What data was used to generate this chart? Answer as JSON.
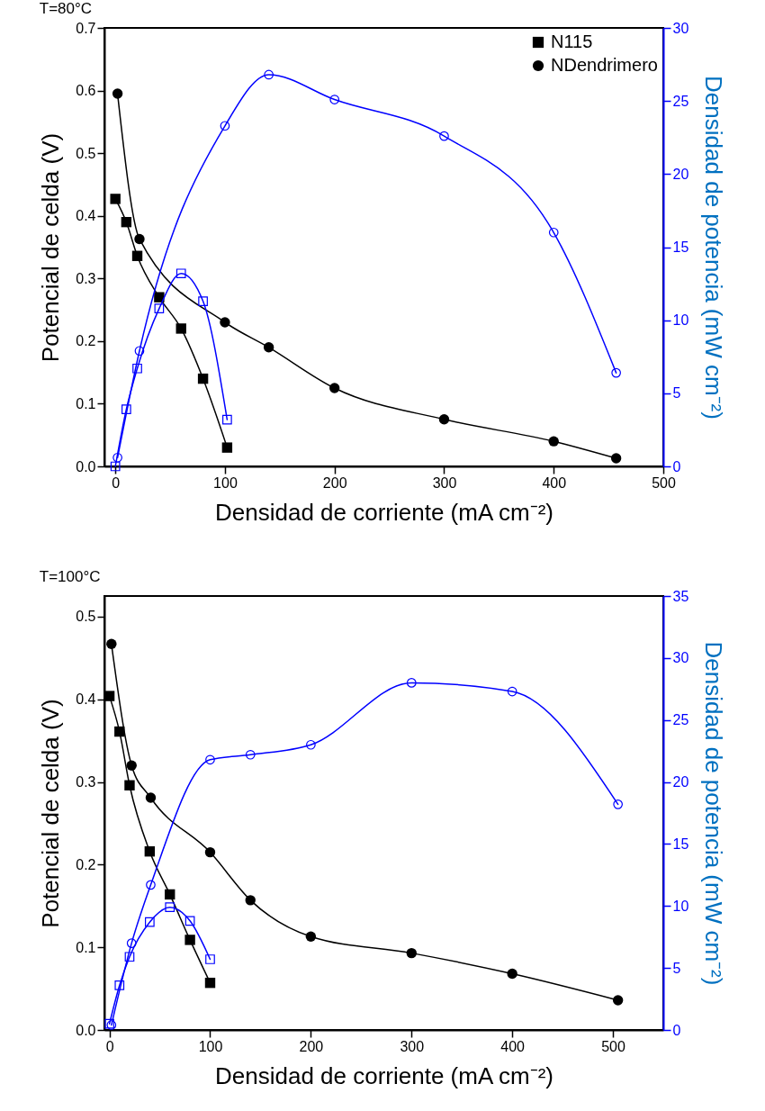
{
  "chart_data": [
    {
      "type": "line",
      "title": "T=80°C",
      "xlabel": "Densidad de corriente (mA cm⁻²)",
      "ylabel": "Potencial de celda (V)",
      "y2label": "Densidad de potencia (mW cm⁻²)",
      "xlim": [
        -10,
        500
      ],
      "xticks": [
        0,
        100,
        200,
        300,
        400,
        500
      ],
      "ylim": [
        0,
        0.7
      ],
      "yticks": [
        {
          "value": 0,
          "label": "0.0"
        },
        0.1,
        0.2,
        0.3,
        0.4,
        0.5,
        0.6,
        0.7
      ],
      "y2lim": [
        0,
        30
      ],
      "y2ticks": [
        0,
        5,
        10,
        15,
        20,
        25,
        30
      ],
      "legend": "top right",
      "grid": false,
      "series": [
        {
          "name": "N115",
          "color": "#000000",
          "marker": "square",
          "x": [
            0,
            10,
            20,
            40,
            60,
            80,
            102
          ],
          "values": [
            0.427,
            0.39,
            0.336,
            0.27,
            0.22,
            0.14,
            0.03
          ]
        },
        {
          "name": "NDendrimero",
          "color": "#000000",
          "marker": "circle",
          "x": [
            2,
            22,
            100,
            140,
            200,
            300,
            400,
            457
          ],
          "values": [
            0.595,
            0.363,
            0.23,
            0.19,
            0.125,
            0.075,
            0.04,
            0.013
          ]
        },
        {
          "color": "#0000ff",
          "marker": "square",
          "axis": "y2",
          "x": [
            0,
            10,
            20,
            40,
            60,
            80,
            102
          ],
          "values": [
            0,
            3.9,
            6.7,
            10.8,
            13.2,
            11.3,
            3.2
          ]
        },
        {
          "color": "#0000ff",
          "marker": "circle",
          "axis": "y2",
          "x": [
            2,
            22,
            100,
            140,
            200,
            300,
            400,
            457
          ],
          "values": [
            0.6,
            7.9,
            23.3,
            26.8,
            25.1,
            22.6,
            16.0,
            6.4
          ]
        }
      ]
    },
    {
      "type": "line",
      "title": "T=100°C",
      "xlabel": "Densidad de corriente (mA cm⁻²)",
      "ylabel": "Potencial de celda (V)",
      "y2label": "Densidad de potencia (mW cm⁻²)",
      "xlim": [
        -5,
        550
      ],
      "xticks": [
        0,
        100,
        200,
        300,
        400,
        500
      ],
      "ylim": [
        0,
        0.525
      ],
      "yticks": [
        {
          "value": 0,
          "label": "0.0"
        },
        0.1,
        0.2,
        0.3,
        0.4,
        0.5
      ],
      "y2lim": [
        0,
        35
      ],
      "y2ticks": [
        0,
        5,
        10,
        15,
        20,
        25,
        30,
        35
      ],
      "legend": "top right",
      "grid": false,
      "series": [
        {
          "name": "N115",
          "color": "#000000",
          "marker": "square",
          "x": [
            0,
            10,
            20,
            40,
            60,
            80,
            100
          ],
          "values": [
            0.404,
            0.361,
            0.296,
            0.216,
            0.164,
            0.109,
            0.057
          ]
        },
        {
          "name": "NDendrimero",
          "color": "#000000",
          "marker": "circle",
          "x": [
            2,
            22,
            41,
            100,
            140,
            200,
            300,
            400,
            505
          ],
          "values": [
            0.467,
            0.32,
            0.281,
            0.215,
            0.157,
            0.113,
            0.093,
            0.068,
            0.036
          ]
        },
        {
          "color": "#0000ff",
          "marker": "square",
          "axis": "y2",
          "x": [
            0,
            10,
            20,
            40,
            60,
            80,
            100
          ],
          "values": [
            0.5,
            3.6,
            5.9,
            8.7,
            9.9,
            8.8,
            5.7
          ]
        },
        {
          "color": "#0000ff",
          "marker": "circle",
          "axis": "y2",
          "x": [
            2,
            22,
            41,
            100,
            140,
            200,
            300,
            400,
            505
          ],
          "values": [
            0.4,
            7.0,
            11.7,
            21.8,
            22.2,
            23.0,
            28.0,
            27.3,
            18.2
          ]
        }
      ]
    }
  ]
}
